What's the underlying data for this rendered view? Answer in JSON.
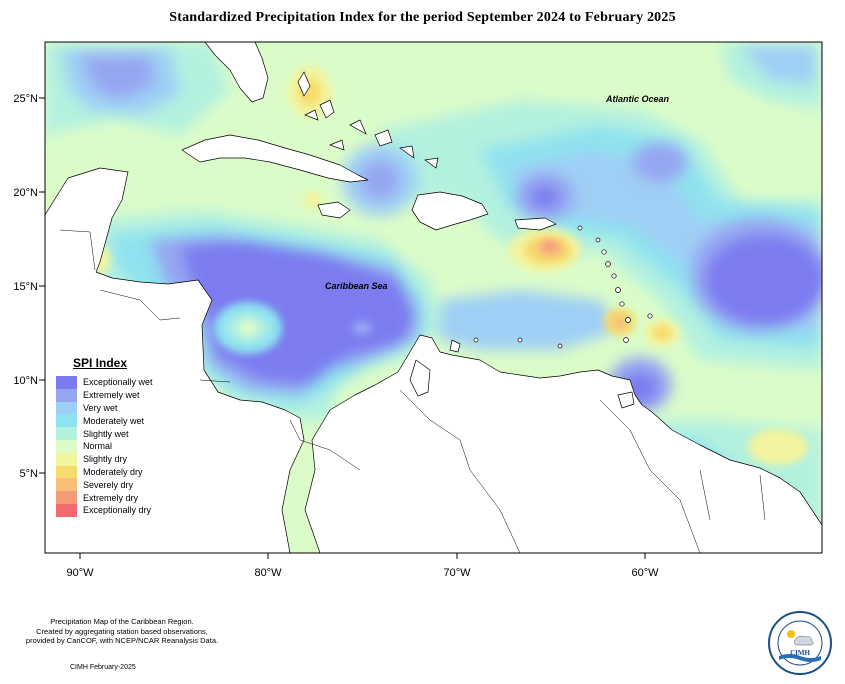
{
  "title": "Standardized Precipitation Index for the period September 2024 to February 2025",
  "map": {
    "lon_ticks": [
      "90°W",
      "80°W",
      "70°W",
      "60°W"
    ],
    "lat_ticks": [
      "25°N",
      "20°N",
      "15°N",
      "10°N",
      "5°N"
    ],
    "labels": {
      "caribbean_sea": "Caribbean Sea",
      "atlantic_ocean": "Atlantic Ocean"
    },
    "land_color": "#ffffff",
    "coastline_color": "#000000"
  },
  "legend": {
    "title": "SPI Index",
    "items": [
      {
        "label": "Exceptionally wet",
        "color": "#7b7bf0"
      },
      {
        "label": "Extremely wet",
        "color": "#96a6f2"
      },
      {
        "label": "Very wet",
        "color": "#9fcff5"
      },
      {
        "label": "Moderately wet",
        "color": "#8fe2ef"
      },
      {
        "label": "Slightly wet",
        "color": "#b3f1df"
      },
      {
        "label": "Normal",
        "color": "#dbfcc9"
      },
      {
        "label": "Slightly dry",
        "color": "#f3f49e"
      },
      {
        "label": "Moderately dry",
        "color": "#f6dc6a"
      },
      {
        "label": "Severely dry",
        "color": "#f7c079"
      },
      {
        "label": "Extremely dry",
        "color": "#f59b78"
      },
      {
        "label": "Exceptionally dry",
        "color": "#f06a70"
      }
    ]
  },
  "footer": {
    "line1": "Precipitation Map of the Caribbean Region.",
    "line2": "Created by aggregating station based observations,",
    "line3": "provided by CariCOF, with NCEP/NCAR Reanalysis Data.",
    "credit": "CIMH February-2025"
  },
  "logo": {
    "text": "CIMH"
  }
}
